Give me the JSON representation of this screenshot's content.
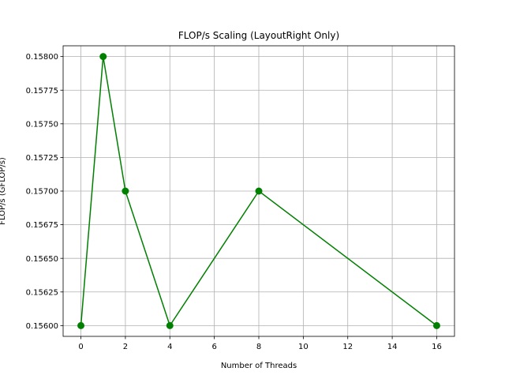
{
  "chart_data": {
    "type": "line",
    "title": "FLOP/s Scaling (LayoutRight Only)",
    "xlabel": "Number of Threads",
    "ylabel": "FLOP/s (GFLOP/s)",
    "x": [
      0,
      1,
      2,
      4,
      8,
      16
    ],
    "series": [
      {
        "name": "",
        "values": [
          0.156,
          0.158,
          0.157,
          0.156,
          0.157,
          0.156
        ],
        "color": "#008000",
        "marker": "circle"
      }
    ],
    "xlim": [
      -0.8,
      16.8
    ],
    "ylim": [
      0.15592,
      0.15808
    ],
    "xticks": [
      0,
      2,
      4,
      6,
      8,
      10,
      12,
      14,
      16
    ],
    "xtick_labels": [
      "0",
      "2",
      "4",
      "6",
      "8",
      "10",
      "12",
      "14",
      "16"
    ],
    "yticks": [
      0.156,
      0.15625,
      0.1565,
      0.15675,
      0.157,
      0.15725,
      0.1575,
      0.15775,
      0.158
    ],
    "ytick_labels": [
      "0.15600",
      "0.15625",
      "0.15650",
      "0.15675",
      "0.15700",
      "0.15725",
      "0.15750",
      "0.15775",
      "0.15800"
    ],
    "grid": true,
    "grid_color": "#b0b0b0"
  }
}
